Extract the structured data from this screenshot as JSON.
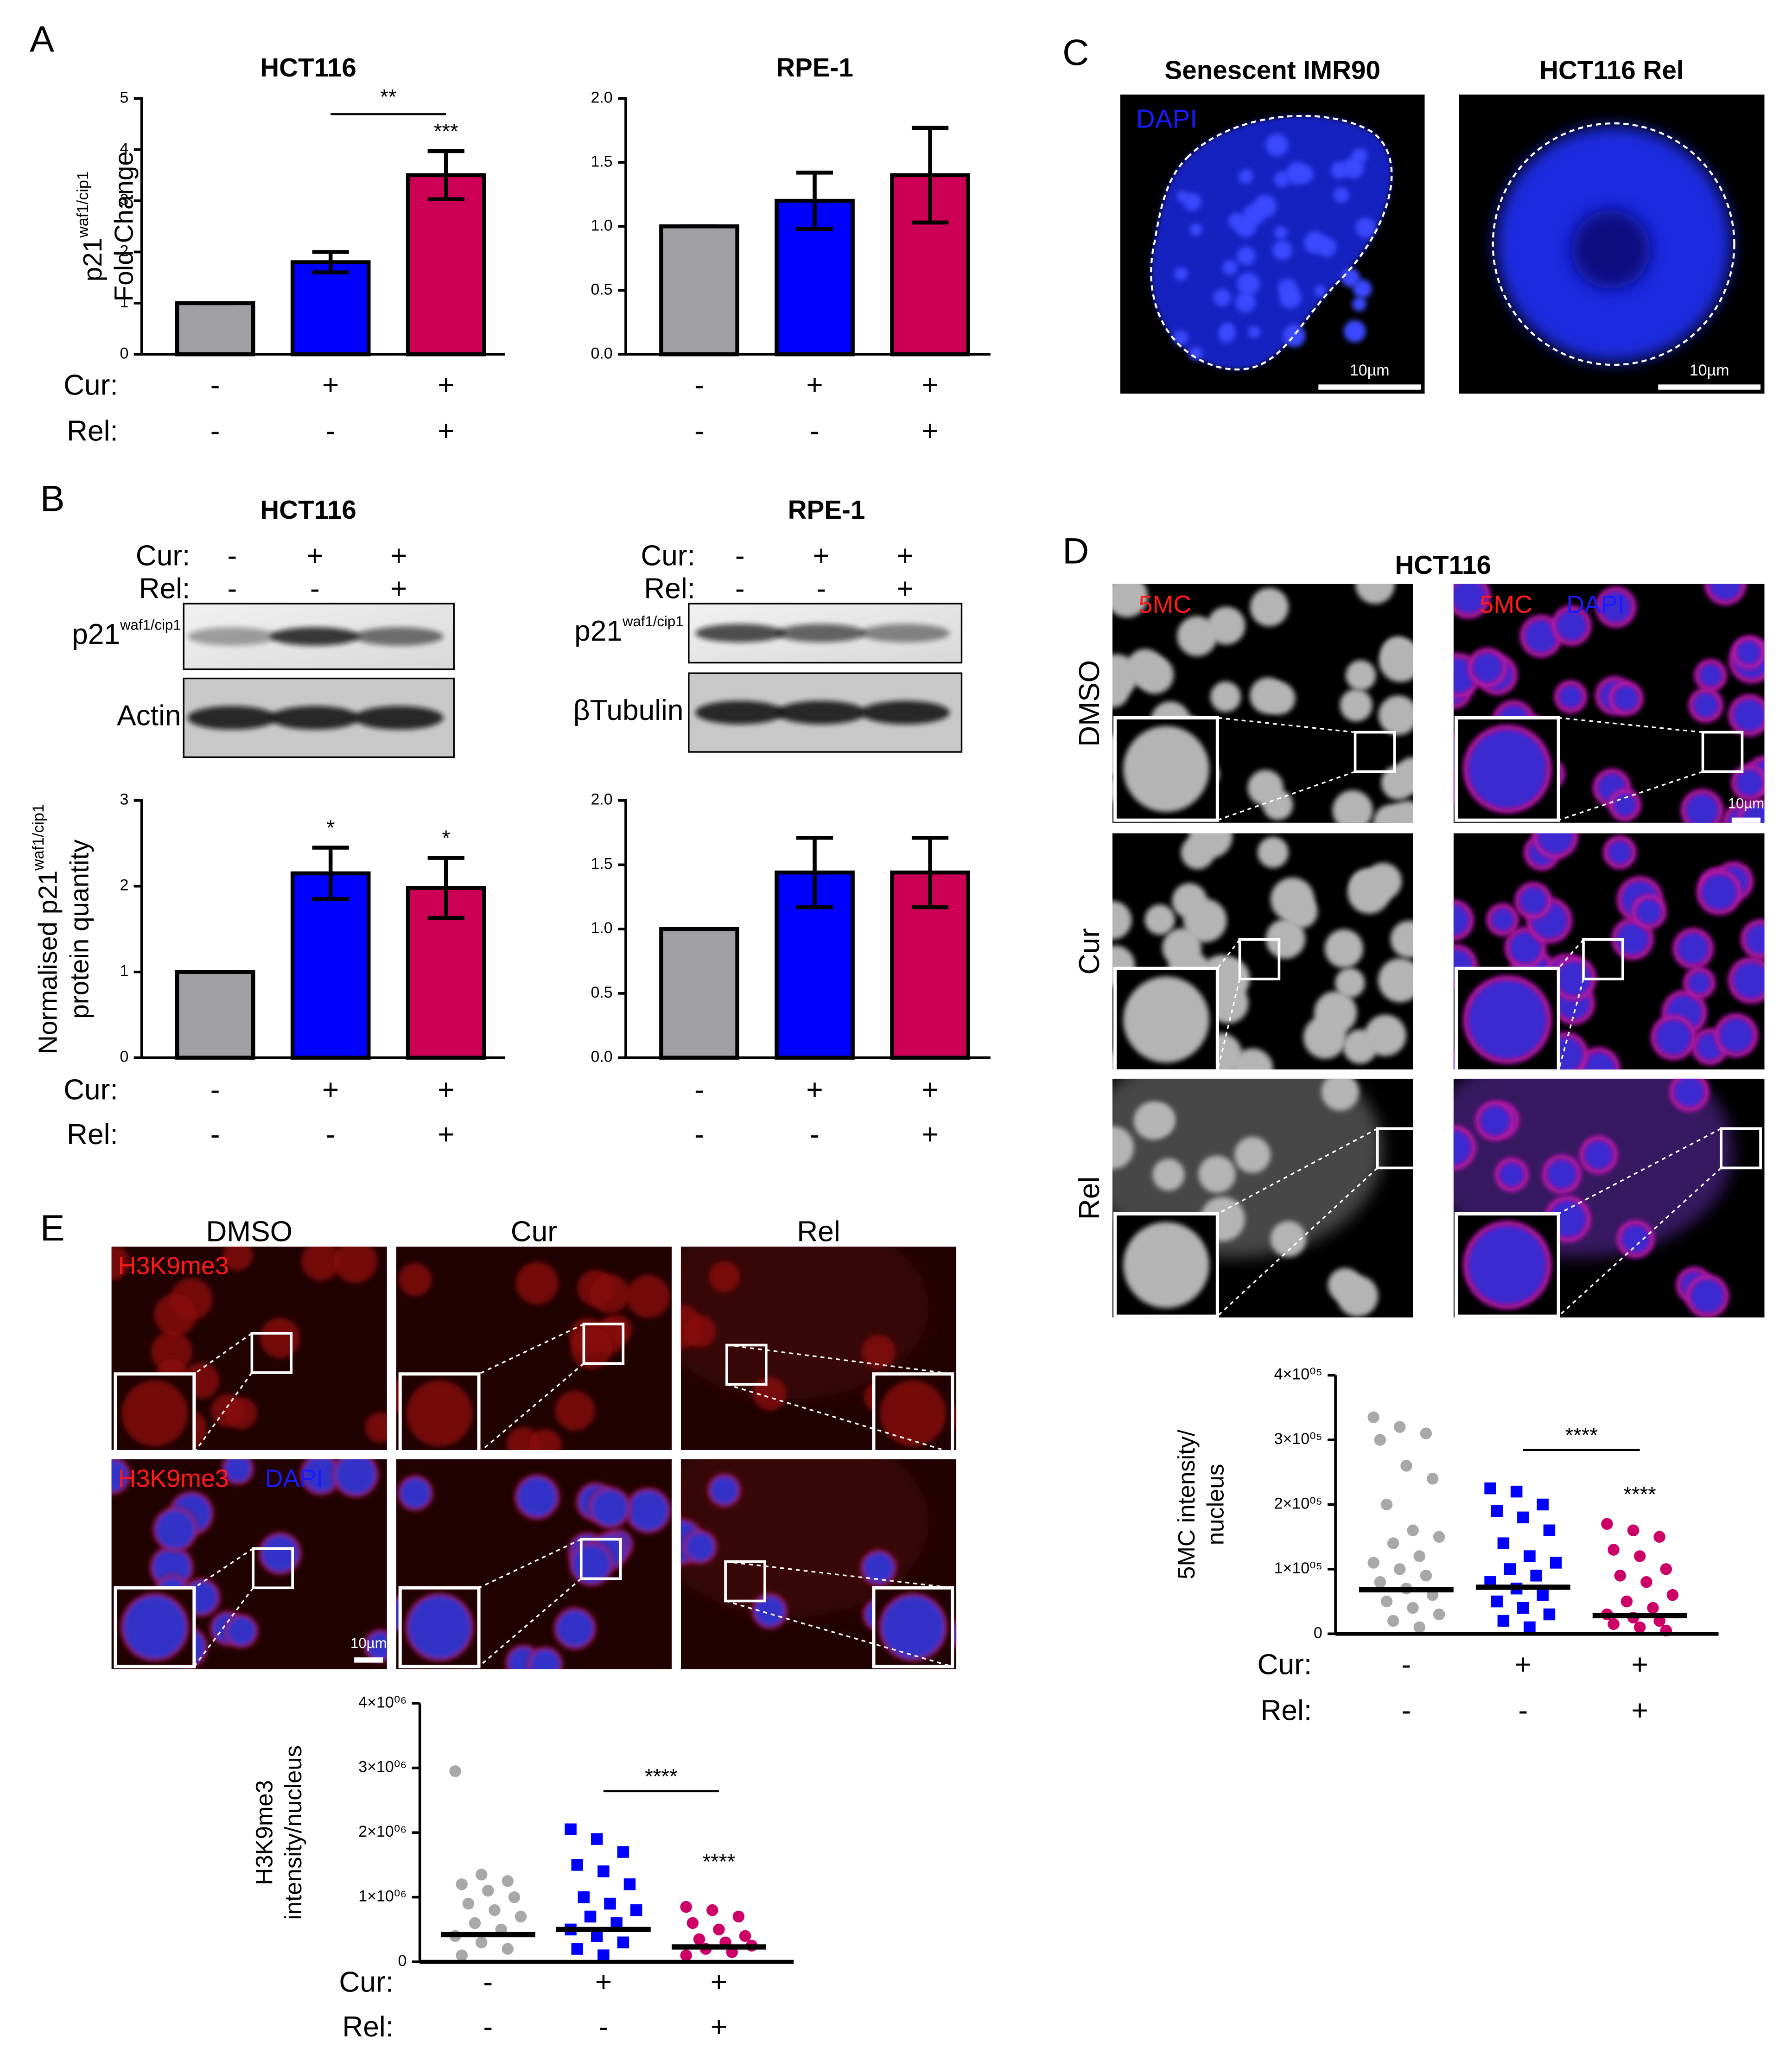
{
  "panel_labels": [
    "A",
    "B",
    "C",
    "D",
    "E"
  ],
  "chart_data": [
    {
      "type": "bar",
      "title": "HCT116",
      "ylabel": [
        {
          "text": "p21",
          "sup": "waf1/cip1"
        },
        {
          "text": "Fold Change"
        }
      ],
      "values": [
        1,
        1.8,
        3.5
      ],
      "errors": [
        0,
        0.2,
        0.47
      ],
      "colors": [
        "#a0a0a4",
        "#0000ff",
        "#cc0055"
      ],
      "ylim": [
        0,
        5
      ],
      "yticks": [
        0,
        1,
        2,
        3,
        4,
        5
      ],
      "bracket_label": "**",
      "bar_labels": [
        null,
        null,
        "***"
      ],
      "condition_rows": [
        {
          "name": "Cur:",
          "marks": [
            "-",
            "+",
            "+"
          ]
        },
        {
          "name": "Rel:",
          "marks": [
            "-",
            "-",
            "+"
          ]
        }
      ]
    },
    {
      "type": "bar",
      "title": "RPE-1",
      "values": [
        1,
        1.2,
        1.4
      ],
      "errors": [
        0,
        0.22,
        0.37
      ],
      "colors": [
        "#a0a0a4",
        "#0000ff",
        "#cc0055"
      ],
      "ylim": [
        0,
        2
      ],
      "yticks": [
        {
          "value": 0,
          "label": "0.0"
        },
        {
          "value": 0.5,
          "label": "0.5"
        },
        {
          "value": 1,
          "label": "1.0"
        },
        {
          "value": 1.5,
          "label": "1.5"
        },
        {
          "value": 2,
          "label": "2.0"
        }
      ],
      "condition_rows": [
        {
          "name": "",
          "marks": [
            "-",
            "+",
            "+"
          ]
        },
        {
          "name": "",
          "marks": [
            "-",
            "-",
            "+"
          ]
        }
      ]
    },
    {
      "type": "bar",
      "ylabel": [
        {
          "text": "Normalised p21",
          "sup": "waf1/cip1"
        },
        {
          "text": "protein quantity"
        }
      ],
      "values": [
        1,
        2.15,
        1.98
      ],
      "errors": [
        0,
        0.3,
        0.35
      ],
      "colors": [
        "#a0a0a4",
        "#0000ff",
        "#cc0055"
      ],
      "ylim": [
        0,
        3
      ],
      "yticks": [
        0,
        1,
        2,
        3
      ],
      "bar_labels": [
        null,
        "*",
        "*"
      ],
      "condition_rows": [
        {
          "name": "Cur:",
          "marks": [
            "-",
            "+",
            "+"
          ]
        },
        {
          "name": "Rel:",
          "marks": [
            "-",
            "-",
            "+"
          ]
        }
      ]
    },
    {
      "type": "bar",
      "values": [
        1,
        1.44,
        1.44
      ],
      "errors": [
        0,
        0.27,
        0.27
      ],
      "colors": [
        "#a0a0a4",
        "#0000ff",
        "#cc0055"
      ],
      "ylim": [
        0,
        2
      ],
      "yticks": [
        {
          "value": 0,
          "label": "0.0"
        },
        {
          "value": 0.5,
          "label": "0.5"
        },
        {
          "value": 1,
          "label": "1.0"
        },
        {
          "value": 1.5,
          "label": "1.5"
        },
        {
          "value": 2,
          "label": "2.0"
        }
      ],
      "condition_rows": [
        {
          "name": "",
          "marks": [
            "-",
            "+",
            "+"
          ]
        },
        {
          "name": "",
          "marks": [
            "-",
            "-",
            "+"
          ]
        }
      ]
    },
    {
      "type": "dotplot",
      "ylabel": [
        {
          "text": "5MC intensity/"
        },
        {
          "text": "nucleus"
        }
      ],
      "ylim": [
        0,
        400000
      ],
      "yticks": [
        0,
        {
          "value": 100000,
          "label": "1×10⁰⁵"
        },
        {
          "value": 200000,
          "label": "2×10⁰⁵"
        },
        {
          "value": 300000,
          "label": "3×10⁰⁵"
        },
        {
          "value": 400000,
          "label": "4×10⁰⁵"
        }
      ],
      "series": [
        {
          "color": "#a8a8a8",
          "marker": "circle",
          "median": 68000,
          "values": [
            335000,
            320000,
            310000,
            300000,
            260000,
            240000,
            200000,
            160000,
            150000,
            140000,
            120000,
            110000,
            100000,
            90000,
            80000,
            70000,
            60000,
            50000,
            40000,
            30000,
            20000,
            10000
          ]
        },
        {
          "color": "#0000ff",
          "marker": "square",
          "median": 72000,
          "values": [
            225000,
            220000,
            200000,
            190000,
            180000,
            160000,
            140000,
            120000,
            110000,
            100000,
            90000,
            80000,
            70000,
            60000,
            50000,
            40000,
            30000,
            20000,
            10000
          ]
        },
        {
          "color": "#cc0066",
          "marker": "circle",
          "median": 28000,
          "values": [
            170000,
            160000,
            150000,
            130000,
            120000,
            100000,
            90000,
            80000,
            60000,
            50000,
            40000,
            30000,
            25000,
            20000,
            15000,
            10000,
            5000
          ]
        }
      ],
      "bracket_label": "****",
      "group_labels": [
        null,
        null,
        "****"
      ],
      "condition_rows": [
        {
          "name": "Cur:",
          "marks": [
            "-",
            "+",
            "+"
          ]
        },
        {
          "name": "Rel:",
          "marks": [
            "-",
            "-",
            "+"
          ]
        }
      ]
    },
    {
      "type": "dotplot",
      "ylabel": [
        {
          "text": "H3K9me3"
        },
        {
          "text": "intensity/nucleus"
        }
      ],
      "ylim": [
        0,
        4000000
      ],
      "yticks": [
        0,
        {
          "value": 1000000,
          "label": "1×10⁰⁶"
        },
        {
          "value": 2000000,
          "label": "2×10⁰⁶"
        },
        {
          "value": 3000000,
          "label": "3×10⁰⁶"
        },
        {
          "value": 4000000,
          "label": "4×10⁰⁶"
        }
      ],
      "series": [
        {
          "color": "#a8a8a8",
          "marker": "circle",
          "median": 420000,
          "values": [
            2950000,
            1350000,
            1250000,
            1200000,
            1100000,
            1000000,
            900000,
            800000,
            700000,
            600000,
            500000,
            400000,
            300000,
            200000,
            100000
          ]
        },
        {
          "color": "#0000ff",
          "marker": "square",
          "median": 500000,
          "values": [
            2050000,
            1900000,
            1700000,
            1500000,
            1400000,
            1200000,
            1000000,
            900000,
            800000,
            700000,
            600000,
            500000,
            400000,
            300000,
            200000,
            100000
          ]
        },
        {
          "color": "#cc0066",
          "marker": "circle",
          "median": 230000,
          "values": [
            850000,
            800000,
            700000,
            600000,
            500000,
            400000,
            350000,
            300000,
            250000,
            200000,
            150000,
            100000
          ]
        }
      ],
      "bracket_label": "****",
      "group_labels": [
        null,
        null,
        "****"
      ],
      "condition_rows": [
        {
          "name": "Cur:",
          "marks": [
            "-",
            "+",
            "+"
          ]
        },
        {
          "name": "Rel:",
          "marks": [
            "-",
            "-",
            "+"
          ]
        }
      ]
    }
  ],
  "blots": [
    {
      "title": "HCT116",
      "condition_rows": [
        {
          "name": "Cur:",
          "marks": [
            "-",
            "+",
            "+"
          ]
        },
        {
          "name": "Rel:",
          "marks": [
            "-",
            "-",
            "+"
          ]
        }
      ],
      "bands": [
        {
          "text": "p21",
          "sup": "waf1/cip1"
        },
        {
          "text": "Actin"
        }
      ]
    },
    {
      "title": "RPE-1",
      "condition_rows": [
        {
          "name": "Cur:",
          "marks": [
            "-",
            "+",
            "+"
          ]
        },
        {
          "name": "Rel:",
          "marks": [
            "-",
            "-",
            "+"
          ]
        }
      ],
      "bands": [
        {
          "text": "p21",
          "sup": "waf1/cip1"
        },
        {
          "text": "βTubulin"
        }
      ]
    }
  ],
  "panel_c": {
    "images": [
      {
        "title": "Senescent IMR90",
        "stain": {
          "text": "DAPI",
          "color": "#1a1aff"
        },
        "scale_bar": "10µm"
      },
      {
        "title": "HCT116 Rel",
        "scale_bar": "10µm"
      }
    ]
  },
  "panel_d": {
    "title": "HCT116",
    "rows": [
      "DMSO",
      "Cur",
      "Rel"
    ],
    "columns": [
      [
        {
          "text": "5MC",
          "color": "#ff1a1a"
        }
      ],
      [
        {
          "text": "5MC",
          "color": "#ff1a1a"
        },
        {
          "text": "DAPI",
          "color": "#1a1aff"
        }
      ]
    ],
    "scale_bar": "10µm"
  },
  "panel_e": {
    "columns": [
      "DMSO",
      "Cur",
      "Rel"
    ],
    "rows": [
      [
        {
          "text": "H3K9me3",
          "color": "#ff1a1a"
        }
      ],
      [
        {
          "text": "H3K9me3",
          "color": "#ff1a1a"
        },
        {
          "text": "DAPI",
          "color": "#1a1aff"
        }
      ]
    ],
    "scale_bar": "10µm"
  }
}
